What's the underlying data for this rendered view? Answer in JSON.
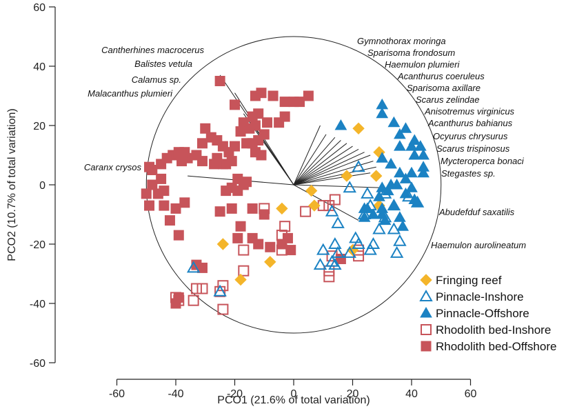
{
  "chart_data": {
    "type": "scatter",
    "title": "",
    "xlabel": "PCO1 (21.6% of total variation)",
    "ylabel": "PCO2 (10.7% of total variation)",
    "xlim": [
      -60,
      60
    ],
    "ylim": [
      -60,
      60
    ],
    "xticks": [
      -60,
      -40,
      -20,
      0,
      20,
      40,
      60
    ],
    "yticks": [
      60,
      40,
      20,
      0,
      -20,
      -40,
      -60
    ],
    "grid": false,
    "legend_position": "bottom-right",
    "circle_radius": 50,
    "colors": {
      "Fringing reef": "#F4B52A",
      "Pinnacle-Inshore": "#1B82C3",
      "Pinnacle-Offshore": "#1B82C3",
      "Rhodolith bed-Inshore": "#C7545A",
      "Rhodolith bed-Offshore": "#C7545A"
    },
    "series": [
      {
        "name": "Fringing reef",
        "marker": "diamond-filled",
        "points": [
          [
            22,
            19
          ],
          [
            29,
            11
          ],
          [
            28,
            3
          ],
          [
            18,
            3
          ],
          [
            6,
            -2
          ],
          [
            29,
            -7
          ],
          [
            7,
            -7
          ],
          [
            -4,
            -8
          ],
          [
            -24,
            -20
          ],
          [
            -8,
            -26
          ],
          [
            -18,
            -32
          ],
          [
            20,
            -22
          ]
        ]
      },
      {
        "name": "Pinnacle-Inshore",
        "marker": "triangle-open",
        "points": [
          [
            22,
            6
          ],
          [
            19,
            -1
          ],
          [
            25,
            -3
          ],
          [
            31,
            -3
          ],
          [
            26,
            -7
          ],
          [
            34,
            -7
          ],
          [
            24,
            -10
          ],
          [
            13,
            -9
          ],
          [
            31,
            -11
          ],
          [
            15,
            -13
          ],
          [
            34,
            -15
          ],
          [
            29,
            -15
          ],
          [
            36,
            -19
          ],
          [
            35,
            -23
          ],
          [
            21,
            -18
          ],
          [
            14,
            -20
          ],
          [
            22,
            -20
          ],
          [
            27,
            -20
          ],
          [
            10,
            -22
          ],
          [
            26,
            -22
          ],
          [
            19,
            -23
          ],
          [
            15,
            -23
          ],
          [
            13,
            -26
          ],
          [
            9,
            -27
          ],
          [
            14,
            -27
          ],
          [
            -34,
            -28
          ],
          [
            -25,
            -36
          ],
          [
            42,
            -6
          ],
          [
            39,
            -4
          ]
        ]
      },
      {
        "name": "Pinnacle-Offshore",
        "marker": "triangle-filled",
        "points": [
          [
            30,
            27
          ],
          [
            30,
            24
          ],
          [
            34,
            21
          ],
          [
            16,
            20
          ],
          [
            36,
            17
          ],
          [
            38,
            19
          ],
          [
            41,
            15
          ],
          [
            43,
            13
          ],
          [
            40,
            13
          ],
          [
            36,
            13
          ],
          [
            41,
            10
          ],
          [
            44,
            10
          ],
          [
            30,
            9
          ],
          [
            44,
            6
          ],
          [
            33,
            7
          ],
          [
            36,
            4
          ],
          [
            40,
            4
          ],
          [
            38,
            2
          ],
          [
            44,
            4
          ],
          [
            35,
            0
          ],
          [
            30,
            -1
          ],
          [
            33,
            0
          ],
          [
            40,
            -1
          ],
          [
            29,
            -4
          ],
          [
            32,
            -2
          ],
          [
            38,
            -3
          ],
          [
            30,
            -8
          ],
          [
            24,
            -8
          ],
          [
            34,
            -7
          ],
          [
            27,
            -10
          ],
          [
            36,
            -11
          ],
          [
            31,
            -12
          ],
          [
            25,
            -8
          ],
          [
            24,
            -11
          ],
          [
            30,
            -10
          ],
          [
            37,
            -14
          ],
          [
            41,
            -5
          ],
          [
            42,
            -6
          ]
        ]
      },
      {
        "name": "Rhodolith bed-Inshore",
        "marker": "square-open",
        "points": [
          [
            -10,
            -8
          ],
          [
            10,
            -7
          ],
          [
            12,
            -7
          ],
          [
            14,
            -5
          ],
          [
            4,
            -9
          ],
          [
            -3,
            -14
          ],
          [
            -4,
            -17
          ],
          [
            -4,
            -22
          ],
          [
            13,
            -24
          ],
          [
            12,
            -29
          ],
          [
            12,
            -31
          ],
          [
            -17,
            -22
          ],
          [
            -17,
            -29
          ],
          [
            -24,
            -34
          ],
          [
            -25,
            -36
          ],
          [
            -31,
            -35
          ],
          [
            -33,
            -35
          ],
          [
            -34,
            -39
          ],
          [
            -24,
            -42
          ],
          [
            22,
            -24
          ],
          [
            22,
            -22
          ],
          [
            -40,
            -38
          ],
          [
            -39,
            -39
          ]
        ]
      },
      {
        "name": "Rhodolith bed-Offshore",
        "marker": "square-filled",
        "points": [
          [
            -25,
            35
          ],
          [
            -13,
            30
          ],
          [
            -20,
            27
          ],
          [
            -11,
            31
          ],
          [
            -7,
            30
          ],
          [
            -3,
            28
          ],
          [
            0,
            28
          ],
          [
            2,
            28
          ],
          [
            5,
            30
          ],
          [
            -12,
            24
          ],
          [
            -14,
            23
          ],
          [
            -17,
            21
          ],
          [
            -18,
            18
          ],
          [
            -15,
            19
          ],
          [
            -13,
            20
          ],
          [
            -12,
            15
          ],
          [
            -14,
            14
          ],
          [
            -16,
            14
          ],
          [
            -13,
            11
          ],
          [
            -11,
            10
          ],
          [
            -10,
            17
          ],
          [
            -5,
            21
          ],
          [
            -3,
            23
          ],
          [
            -9,
            21
          ],
          [
            -30,
            19
          ],
          [
            -31,
            14
          ],
          [
            -28,
            16
          ],
          [
            -26,
            15
          ],
          [
            -24,
            13
          ],
          [
            -20,
            13
          ],
          [
            -22,
            11
          ],
          [
            -26,
            9
          ],
          [
            -24,
            7
          ],
          [
            -27,
            7
          ],
          [
            -23,
            7
          ],
          [
            -21,
            8
          ],
          [
            -31,
            8
          ],
          [
            -33,
            10
          ],
          [
            -36,
            9
          ],
          [
            -37,
            11
          ],
          [
            -41,
            10
          ],
          [
            -39,
            11
          ],
          [
            -38,
            8
          ],
          [
            -43,
            9
          ],
          [
            -45,
            7
          ],
          [
            -48,
            5
          ],
          [
            -49,
            6
          ],
          [
            -45,
            2
          ],
          [
            -48,
            0
          ],
          [
            -44,
            -2
          ],
          [
            -50,
            -3
          ],
          [
            -46,
            -3
          ],
          [
            -49,
            -7
          ],
          [
            -44,
            -7
          ],
          [
            -40,
            -8
          ],
          [
            -37,
            -6
          ],
          [
            -42,
            -12
          ],
          [
            -39,
            -17
          ],
          [
            -18,
            -14
          ],
          [
            -19,
            -18
          ],
          [
            -14,
            -18
          ],
          [
            -12,
            -20
          ],
          [
            -8,
            -21
          ],
          [
            -4,
            -20
          ],
          [
            -2,
            -18
          ],
          [
            -1,
            -22
          ],
          [
            -21,
            -1
          ],
          [
            -19,
            2
          ],
          [
            -10,
            -10
          ],
          [
            -25,
            -9
          ],
          [
            -31,
            -28
          ],
          [
            -33,
            -27
          ],
          [
            -39,
            -38
          ],
          [
            -40,
            -40
          ],
          [
            -19,
            -2
          ],
          [
            -17,
            0
          ],
          [
            -16,
            1
          ],
          [
            -23,
            -2
          ],
          [
            -21,
            -8
          ],
          [
            -14,
            -8
          ],
          [
            16,
            -25
          ]
        ]
      }
    ],
    "vectors": [
      {
        "species": "Cantherhines macrocerus",
        "end": [
          -25,
          37
        ]
      },
      {
        "species": "Balistes vetula",
        "end": [
          -20,
          31
        ]
      },
      {
        "species": "Calamus sp.",
        "end": [
          -17,
          24
        ]
      },
      {
        "species": "Malacanthus plumieri",
        "end": [
          -13,
          19
        ]
      },
      {
        "species": "Caranx crysos",
        "end": [
          -36,
          3
        ]
      },
      {
        "species": "Gymnothorax moringa",
        "end": [
          9,
          20
        ]
      },
      {
        "species": "Sparisoma frondosum",
        "end": [
          11,
          17
        ]
      },
      {
        "species": "Haemulon plumieri",
        "end": [
          14,
          16
        ]
      },
      {
        "species": "Acanthurus coeruleus",
        "end": [
          16,
          15
        ]
      },
      {
        "species": "Sparisoma axillare",
        "end": [
          18,
          14
        ]
      },
      {
        "species": "Scarus zelindae",
        "end": [
          20,
          13
        ]
      },
      {
        "species": "Anisotremus virginicus",
        "end": [
          22,
          12
        ]
      },
      {
        "species": "Acanthurus bahianus",
        "end": [
          24,
          11
        ]
      },
      {
        "species": "Ocyurus chrysurus",
        "end": [
          26,
          10
        ]
      },
      {
        "species": "Scarus trispinosus",
        "end": [
          27,
          8
        ]
      },
      {
        "species": "Mycteroperca bonaci",
        "end": [
          28,
          6
        ]
      },
      {
        "species": "Stegastes sp.",
        "end": [
          26,
          4
        ]
      },
      {
        "species": "Abudefduf saxatilis",
        "end": [
          30,
          -1
        ]
      },
      {
        "species": "Haemulon aurolineatum",
        "end": [
          22,
          -12
        ]
      }
    ]
  }
}
